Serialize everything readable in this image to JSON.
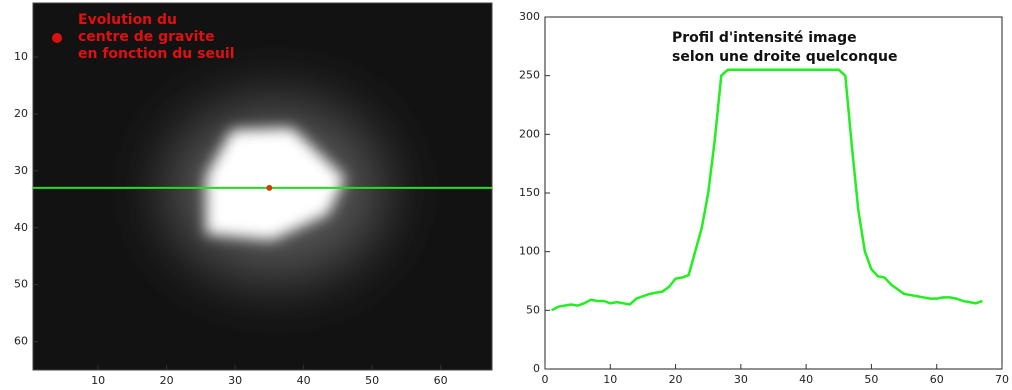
{
  "chart_data": [
    {
      "type": "image",
      "annotation": [
        "Evolution du",
        "centre de gravite",
        "en fonction du seuil"
      ],
      "xlim": [
        0.5,
        67.5
      ],
      "xticks": [
        10,
        20,
        30,
        40,
        50,
        60
      ],
      "ylim": [
        65,
        0.5
      ],
      "yticks": [
        10,
        20,
        30,
        40,
        50,
        60
      ],
      "hline": 33,
      "hline_color": "#22dd22",
      "points": [
        {
          "x": 35,
          "y": 33
        }
      ],
      "point_color": "#d04000"
    },
    {
      "type": "line",
      "annotation": [
        "Profil d'intensité image",
        "selon une droite quelconque"
      ],
      "xlim": [
        0,
        70
      ],
      "xticks": [
        0,
        10,
        20,
        30,
        40,
        50,
        60,
        70
      ],
      "ylim": [
        0,
        300
      ],
      "yticks": [
        0,
        50,
        100,
        150,
        200,
        250,
        300
      ],
      "series": [
        {
          "color": "#22ee22",
          "x": [
            1,
            2,
            3,
            4,
            5,
            6,
            7,
            8,
            9,
            10,
            11,
            12,
            13,
            14,
            15,
            16,
            17,
            18,
            19,
            20,
            21,
            22,
            23,
            24,
            25,
            26,
            27,
            28,
            29,
            30,
            31,
            32,
            33,
            34,
            35,
            36,
            37,
            38,
            39,
            40,
            41,
            42,
            43,
            44,
            45,
            46,
            47,
            48,
            49,
            50,
            51,
            52,
            53,
            54,
            55,
            56,
            57,
            58,
            59,
            60,
            61,
            62,
            63,
            64,
            65,
            66,
            67
          ],
          "values": [
            50,
            53,
            54,
            55,
            54,
            56,
            59,
            58,
            58,
            56,
            57,
            56,
            55,
            60,
            62,
            64,
            65,
            66,
            70,
            77,
            78,
            80,
            100,
            120,
            150,
            195,
            250,
            255,
            255,
            255,
            255,
            255,
            255,
            255,
            255,
            255,
            255,
            255,
            255,
            255,
            255,
            255,
            255,
            255,
            255,
            250,
            190,
            135,
            100,
            85,
            79,
            78,
            72,
            68,
            64,
            63,
            62,
            61,
            60,
            60,
            61,
            61,
            60,
            58,
            57,
            56,
            58
          ]
        }
      ]
    }
  ]
}
